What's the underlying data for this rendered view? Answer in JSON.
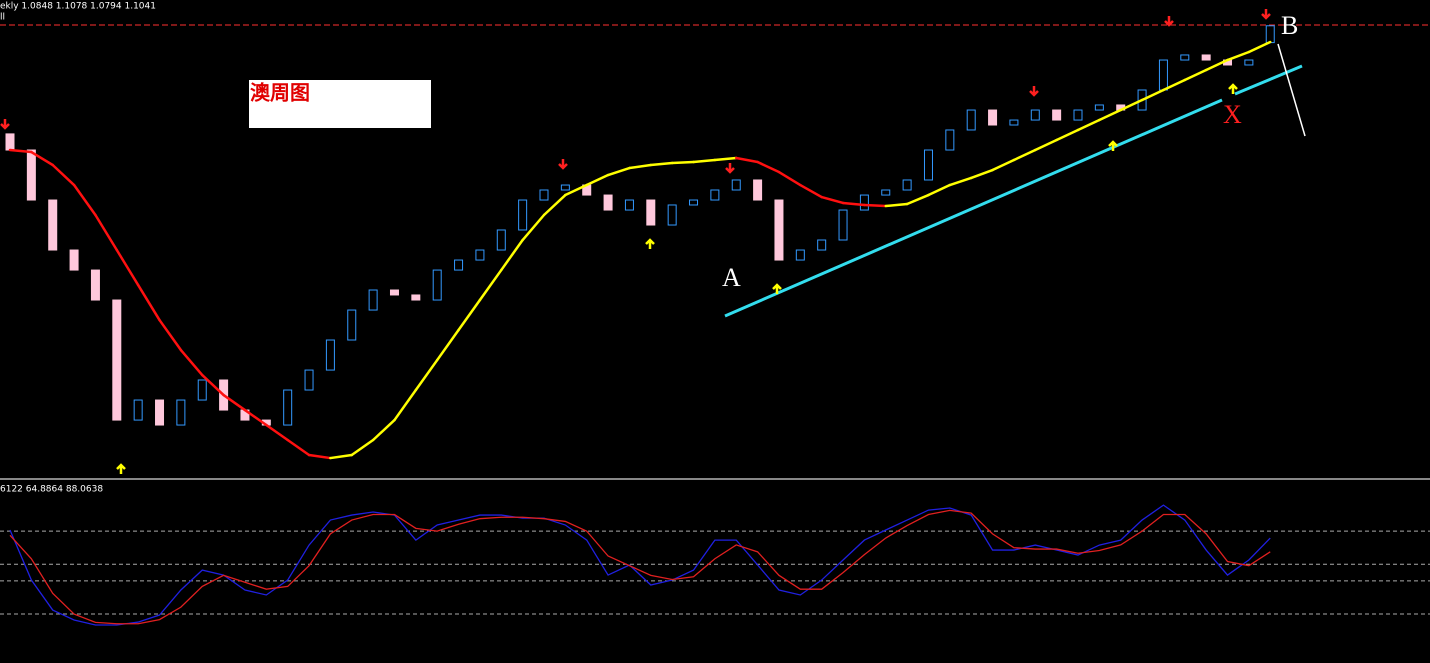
{
  "header": {
    "symbol_line": "ekly  1.0848 1.1078 1.0794 1.1041",
    "sub": "ll"
  },
  "chart_label": "澳周图",
  "annotations": {
    "a": "A",
    "b": "B",
    "x": "X"
  },
  "chart_data": [
    {
      "type": "candlestick",
      "open": [
        0.98,
        0.9615,
        0.9041,
        0.8467,
        0.8237,
        0.7893,
        0.6515,
        0.6745,
        0.6458,
        0.6745,
        0.6975,
        0.663,
        0.6515,
        0.6458,
        0.686,
        0.7089,
        0.7434,
        0.7778,
        0.8008,
        0.7951,
        0.7893,
        0.8237,
        0.8352,
        0.8467,
        0.8697,
        0.9041,
        0.9156,
        0.9213,
        0.9098,
        0.8926,
        0.9041,
        0.8754,
        0.8984,
        0.9041,
        0.9156,
        0.9271,
        0.9041,
        0.8352,
        0.8467,
        0.8582,
        0.8926,
        0.9098,
        0.9156,
        0.9271,
        0.9615,
        0.9845,
        1.0074,
        0.9902,
        0.9959,
        1.0074,
        0.9959,
        1.0074,
        1.0132,
        1.0074,
        1.0304,
        1.0648,
        1.0706,
        1.0648,
        1.0591,
        1.0848
      ],
      "close": [
        0.9615,
        0.9041,
        0.8467,
        0.8237,
        0.7893,
        0.6515,
        0.6745,
        0.6458,
        0.6745,
        0.6975,
        0.663,
        0.6515,
        0.6458,
        0.686,
        0.7089,
        0.7434,
        0.7778,
        0.8008,
        0.7951,
        0.7893,
        0.8237,
        0.8352,
        0.8467,
        0.8697,
        0.9041,
        0.9156,
        0.9213,
        0.9098,
        0.8926,
        0.9041,
        0.8754,
        0.8984,
        0.9041,
        0.9156,
        0.9271,
        0.9041,
        0.8352,
        0.8467,
        0.8582,
        0.8926,
        0.9098,
        0.9156,
        0.9271,
        0.9615,
        0.9845,
        1.0074,
        0.9902,
        0.9959,
        1.0074,
        0.9959,
        1.0074,
        1.0132,
        1.0074,
        1.0304,
        1.0648,
        1.0706,
        1.0648,
        1.0591,
        1.0648,
        1.1041
      ],
      "up_color": "#3399ff",
      "down_color": "#ffc8dc",
      "ma": {
        "rising_color": "#ffff00",
        "falling_color": "#ff1010",
        "values": [
          0.9615,
          0.9592,
          0.9443,
          0.9213,
          0.8869,
          0.8467,
          0.8065,
          0.7663,
          0.7319,
          0.7032,
          0.6802,
          0.663,
          0.6458,
          0.6286,
          0.6114,
          0.6079,
          0.6114,
          0.6286,
          0.6515,
          0.686,
          0.7204,
          0.7549,
          0.7893,
          0.8237,
          0.8582,
          0.8869,
          0.9098,
          0.9213,
          0.9328,
          0.9408,
          0.9443,
          0.9466,
          0.9477,
          0.95,
          0.9523,
          0.9477,
          0.9362,
          0.9213,
          0.9075,
          0.9007,
          0.8984,
          0.8972,
          0.8995,
          0.9098,
          0.9213,
          0.9294,
          0.9385,
          0.95,
          0.9615,
          0.973,
          0.9845,
          0.9959,
          1.0074,
          1.0189,
          1.0304,
          1.0419,
          1.0533,
          1.0648,
          1.074,
          1.0855
        ]
      },
      "price_line": 1.105,
      "price_line_color": "#ff3030",
      "ylim": [
        0.585,
        1.1337
      ]
    },
    {
      "type": "line",
      "title": "6122 64.8864 88.0638",
      "series": [
        {
          "color": "#2020e0",
          "values": [
            80.8,
            44.6,
            22.9,
            15.7,
            12.1,
            12.1,
            14.2,
            19.3,
            37.4,
            51.8,
            48.2,
            37.4,
            33.8,
            44.6,
            69.9,
            88.0,
            91.6,
            93.8,
            91.6,
            73.5,
            84.4,
            88.0,
            91.6,
            91.6,
            89.4,
            89.4,
            84.4,
            73.5,
            48.2,
            55.5,
            41.0,
            44.6,
            51.8,
            73.5,
            73.5,
            55.5,
            37.4,
            33.8,
            44.6,
            59.1,
            73.5,
            80.8,
            88.0,
            95.2,
            96.7,
            91.6,
            66.3,
            66.3,
            69.9,
            66.3,
            62.7,
            69.9,
            73.5,
            88.0,
            98.8,
            88.0,
            66.3,
            48.2,
            59.1,
            75.0
          ]
        },
        {
          "color": "#e02020",
          "values": [
            77,
            60,
            35,
            20,
            14,
            13,
            13,
            16,
            25,
            40,
            48,
            43,
            38,
            40,
            55,
            78,
            88,
            92,
            92,
            82,
            80,
            85,
            89,
            90,
            90,
            89,
            87,
            80,
            62,
            55,
            48,
            45,
            47,
            60,
            70,
            65,
            48,
            38,
            38,
            50,
            63,
            75,
            84,
            92,
            95,
            93,
            78,
            68,
            67,
            67,
            64,
            66,
            70,
            80,
            92,
            92,
            78,
            58,
            55,
            65
          ]
        }
      ],
      "levels": [
        80,
        56,
        44,
        20
      ],
      "ylim": [
        -15.4,
        114.8
      ]
    }
  ]
}
